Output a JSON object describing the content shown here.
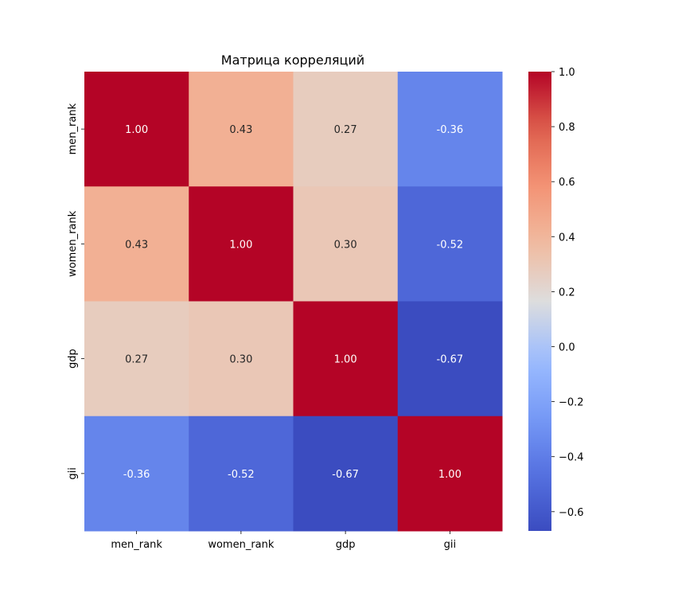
{
  "chart_data": {
    "type": "heatmap",
    "title": "Матрица корреляций",
    "x_labels": [
      "men_rank",
      "women_rank",
      "gdp",
      "gii"
    ],
    "y_labels": [
      "men_rank",
      "women_rank",
      "gdp",
      "gii"
    ],
    "values": [
      [
        1.0,
        0.43,
        0.27,
        -0.36
      ],
      [
        0.43,
        1.0,
        0.3,
        -0.52
      ],
      [
        0.27,
        0.3,
        1.0,
        -0.67
      ],
      [
        -0.36,
        -0.52,
        -0.67,
        1.0
      ]
    ],
    "annotation_format": "0.00",
    "colormap": "coolwarm",
    "colorbar": {
      "min": -0.67,
      "max": 1.0,
      "ticks": [
        1.0,
        0.8,
        0.6,
        0.4,
        0.2,
        0.0,
        -0.2,
        -0.4,
        -0.6
      ],
      "tick_labels": [
        "1.0",
        "0.8",
        "0.6",
        "0.4",
        "0.2",
        "0.0",
        "−0.2",
        "−0.4",
        "−0.6"
      ],
      "placement": "right"
    }
  }
}
